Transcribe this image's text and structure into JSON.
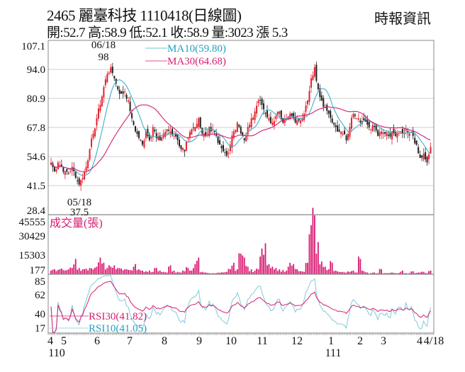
{
  "header": {
    "title": "2465  麗臺科技 1110418(日線圖)",
    "stats": "開:52.7 高:58.9 低:52.1 收:58.9 量:3023 漲 5.3",
    "source": "時報資訊"
  },
  "colors": {
    "up": "#e3202c",
    "down": "#222222",
    "ma10": "#3cb2c8",
    "ma30": "#d81b72",
    "volume": "#d81b72",
    "rsi30": "#d81b72",
    "rsi10": "#7fcadb",
    "grid": "#cfcfcf"
  },
  "chart_data": [
    {
      "type": "candlestick",
      "title": "",
      "y_ticks": [
        "107.1",
        "94.0",
        "80.9",
        "67.8",
        "54.6",
        "41.5",
        "28.4"
      ],
      "ylim": [
        28.4,
        107.1
      ],
      "grid": true,
      "closes": [
        52,
        48,
        52,
        50,
        48,
        47,
        50,
        45,
        42,
        45,
        50,
        58,
        65,
        72,
        78,
        86,
        92,
        95,
        90,
        85,
        83,
        84,
        80,
        72,
        66,
        63,
        60,
        66,
        62,
        68,
        63,
        62,
        65,
        67,
        66,
        64,
        62,
        58,
        57,
        63,
        67,
        68,
        72,
        65,
        64,
        68,
        67,
        64,
        60,
        57,
        55,
        60,
        66,
        70,
        65,
        62,
        68,
        72,
        75,
        80,
        78,
        74,
        72,
        70,
        73,
        75,
        70,
        72,
        74,
        72,
        71,
        71,
        74,
        80,
        90,
        95,
        85,
        80,
        77,
        74,
        70,
        68,
        66,
        65,
        62,
        68,
        74,
        72,
        70,
        71,
        69,
        67,
        68,
        64,
        66,
        65,
        64,
        66,
        64,
        66,
        65,
        67,
        65,
        64,
        60,
        54,
        56,
        52,
        58.9
      ],
      "annotations": [
        {
          "date": "06/18",
          "value": "98"
        },
        {
          "date": "05/18",
          "value": "37.5"
        }
      ],
      "legend": [
        {
          "name": "MA10(59.80)",
          "color": "#3cb2c8"
        },
        {
          "name": "MA30(64.68)",
          "color": "#d81b72"
        }
      ]
    },
    {
      "type": "bar",
      "title": "成交量(張)",
      "y_ticks": [
        "45555",
        "30429",
        "15303",
        "177"
      ],
      "ylim": [
        177,
        45555
      ],
      "values": [
        3000,
        4000,
        3500,
        4500,
        3000,
        4000,
        5000,
        12000,
        5000,
        4000,
        4500,
        5000,
        4000,
        6000,
        13000,
        9000,
        5000,
        6000,
        7000,
        5000,
        4500,
        4000,
        3500,
        3000,
        8000,
        4000,
        3000,
        2500,
        3000,
        2000,
        5000,
        3000,
        2000,
        1500,
        7000,
        3000,
        2000,
        1500,
        2500,
        5000,
        3000,
        8000,
        13000,
        2000,
        1500,
        1000,
        1000,
        1000,
        1200,
        1500,
        2000,
        4000,
        9000,
        4000,
        16000,
        13000,
        6000,
        4000,
        3000,
        4000,
        20000,
        24000,
        8000,
        6000,
        5000,
        4000,
        3500,
        3000,
        9000,
        8000,
        4000,
        2500,
        2000,
        9000,
        38000,
        45555,
        25000,
        10000,
        6000,
        4000,
        9000,
        3000,
        2000,
        2000,
        1500,
        2000,
        3000,
        1500,
        12000,
        2500,
        1500,
        1000,
        1500,
        1000,
        4000,
        1000,
        1000,
        1500,
        1000,
        1200,
        3000,
        1000,
        1000,
        2500,
        1200,
        1500,
        2000,
        1000,
        3023
      ]
    },
    {
      "type": "line",
      "y_ticks": [
        "85",
        "62",
        "40",
        "17"
      ],
      "legend": [
        {
          "name": "RSI30(41.82)",
          "color": "#d81b72"
        },
        {
          "name": "RSI10(41.05)",
          "color": "#7fcadb"
        }
      ]
    }
  ],
  "x_axis": {
    "months": [
      "4",
      "5",
      "6",
      "7",
      "8",
      "9",
      "10",
      "11",
      "12",
      "1",
      "2",
      "3",
      "4",
      "4/18"
    ],
    "years": [
      "110",
      "111"
    ]
  }
}
